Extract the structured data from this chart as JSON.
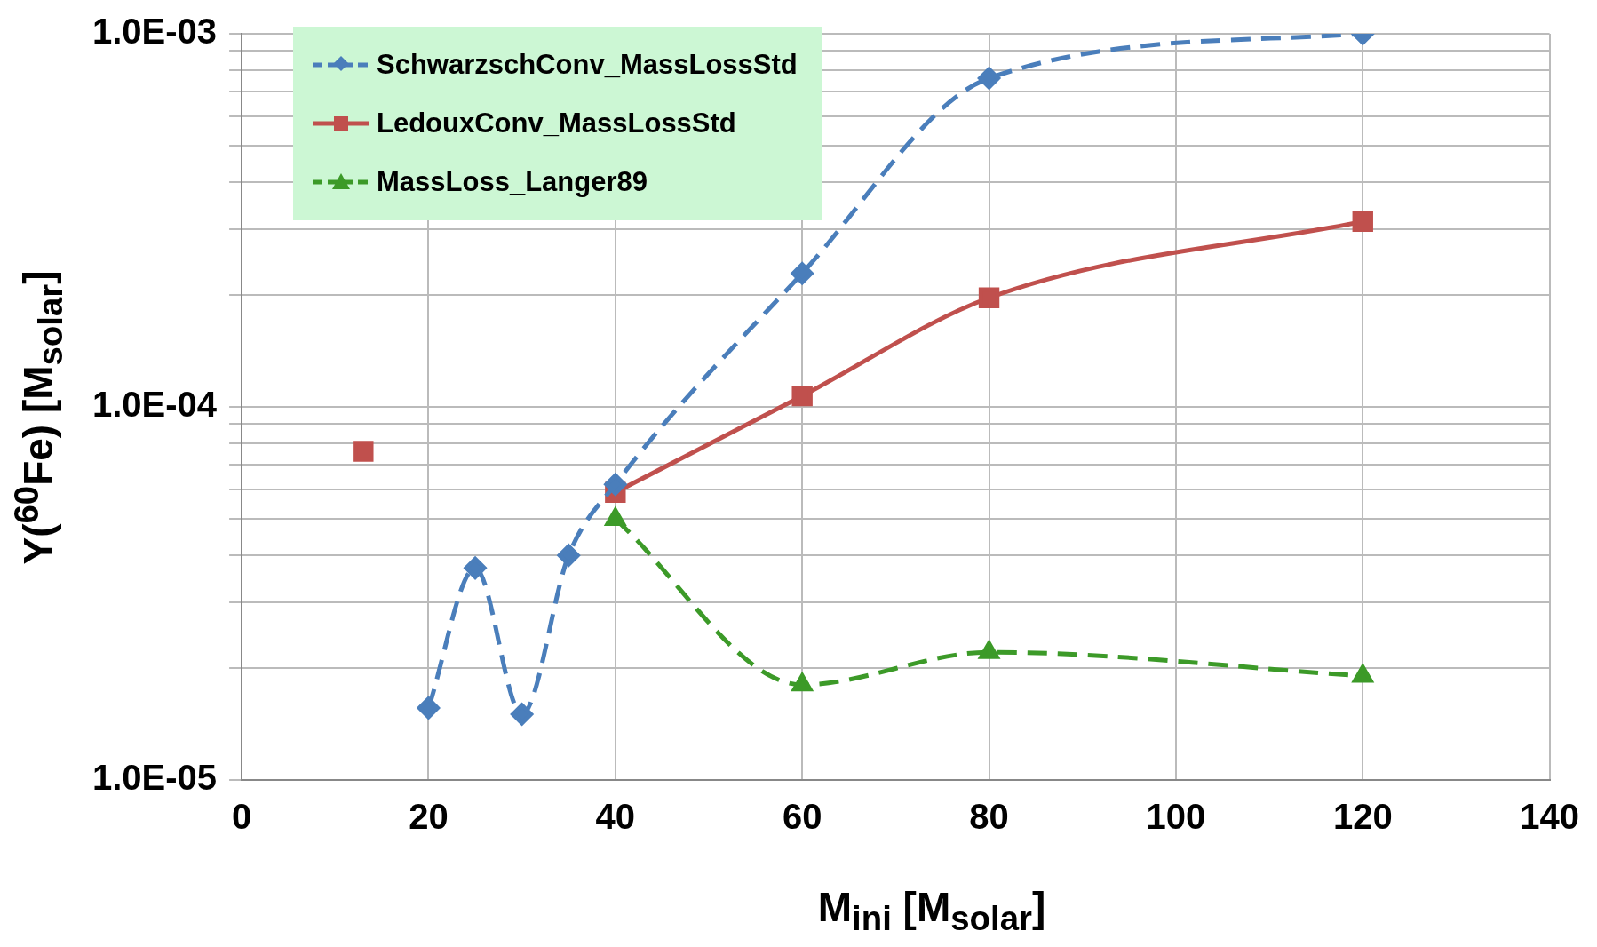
{
  "chart_data": {
    "type": "line",
    "xlabel": "M$_{ini}$ [M$_{solar}$]",
    "ylabel": "Y($^{60}$Fe) [M$_{solar}$]",
    "log": "y",
    "xlim": [
      0,
      140
    ],
    "xticks": [
      0,
      20,
      40,
      60,
      80,
      100,
      120,
      140
    ],
    "ylim": [
      1e-05,
      0.001
    ],
    "yticks": [
      {
        "value": 1e-05,
        "label": "1.0E-05"
      },
      {
        "value": 2e-05,
        "label": null
      },
      {
        "value": 3e-05,
        "label": null
      },
      {
        "value": 4e-05,
        "label": null
      },
      {
        "value": 5e-05,
        "label": null
      },
      {
        "value": 6e-05,
        "label": null
      },
      {
        "value": 7e-05,
        "label": null
      },
      {
        "value": 8e-05,
        "label": null
      },
      {
        "value": 9e-05,
        "label": null
      },
      {
        "value": 0.0001,
        "label": "1.0E-04"
      },
      {
        "value": 0.0002,
        "label": null
      },
      {
        "value": 0.0003,
        "label": null
      },
      {
        "value": 0.0004,
        "label": null
      },
      {
        "value": 0.0005,
        "label": null
      },
      {
        "value": 0.0006,
        "label": null
      },
      {
        "value": 0.0007,
        "label": null
      },
      {
        "value": 0.0008,
        "label": null
      },
      {
        "value": 0.0009,
        "label": null
      },
      {
        "value": 0.001,
        "label": "1.0E-03"
      }
    ],
    "grid": true,
    "legend": "top left",
    "series": [
      {
        "name": "SchwarzschConv_MassLossStd",
        "color": "#4a7ebb",
        "marker": "diamond",
        "line_style": "dashed",
        "x": [
          20,
          25,
          30,
          35,
          40,
          60,
          80,
          120
        ],
        "values": [
          1.56e-05,
          3.7e-05,
          1.5e-05,
          4e-05,
          6.2e-05,
          0.000228,
          0.00076,
          0.001
        ]
      },
      {
        "name": "LedouxConv_MassLossStd",
        "color": "#c0504d",
        "marker": "square",
        "line_style": "solid",
        "x": [
          13,
          20,
          25,
          30,
          35,
          40,
          60,
          80,
          120
        ],
        "values": [
          7.6e-05,
          null,
          null,
          null,
          null,
          5.9e-05,
          0.000107,
          0.000196,
          0.000314
        ]
      },
      {
        "name": "MassLoss_Langer89",
        "color": "#3c9a28",
        "marker": "triangle",
        "line_style": "dashed",
        "x": [
          40,
          60,
          80,
          120
        ],
        "values": [
          5e-05,
          1.8e-05,
          2.2e-05,
          1.9e-05
        ]
      }
    ]
  }
}
